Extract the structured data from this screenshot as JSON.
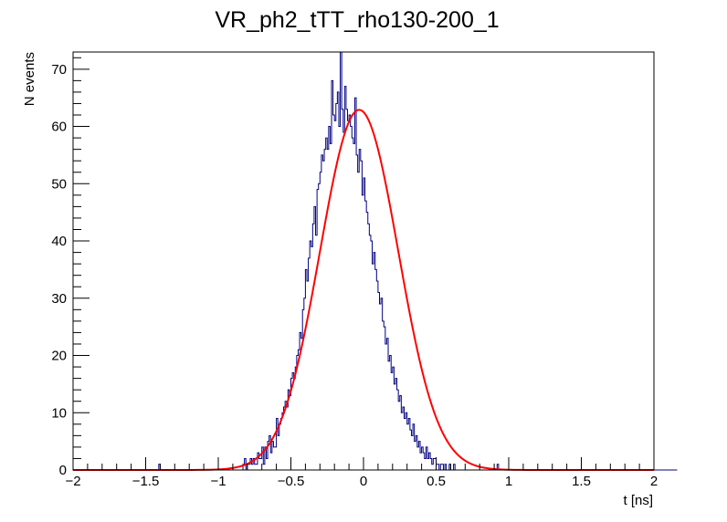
{
  "chart_data": {
    "type": "bar",
    "title": "VR_ph2_tTT_rho130-200_1",
    "xlabel": "t [ns]",
    "ylabel": "N events",
    "xlim": [
      -2,
      2
    ],
    "ylim": [
      0,
      73
    ],
    "x_ticks": [
      -2,
      -1.5,
      -1,
      -0.5,
      0,
      0.5,
      1,
      1.5,
      2
    ],
    "x_tick_labels": [
      "−2",
      "−1.5",
      "−1",
      "−0.5",
      "0",
      "0.5",
      "1",
      "1.5",
      "2"
    ],
    "y_ticks": [
      0,
      10,
      20,
      30,
      40,
      50,
      60,
      70
    ],
    "y_tick_labels": [
      "0",
      "10",
      "20",
      "30",
      "40",
      "50",
      "60",
      "70"
    ],
    "grid": false,
    "legend": "none",
    "series": [
      {
        "kind": "histogram",
        "color": "#000080",
        "bin_edges_start": -2,
        "bin_width": 0.01,
        "counts": [
          0,
          0,
          0,
          0,
          0,
          0,
          0,
          0,
          0,
          0,
          0,
          0,
          0,
          0,
          0,
          0,
          0,
          0,
          0,
          0,
          0,
          0,
          0,
          0,
          0,
          0,
          0,
          0,
          0,
          0,
          0,
          0,
          0,
          0,
          0,
          0,
          0,
          0,
          0,
          0,
          0,
          0,
          0,
          0,
          0,
          0,
          0,
          0,
          0,
          0,
          0,
          0,
          0,
          0,
          0,
          0,
          0,
          0,
          0,
          1,
          0,
          0,
          0,
          0,
          0,
          0,
          0,
          0,
          0,
          0,
          0,
          0,
          0,
          0,
          0,
          0,
          0,
          0,
          0,
          0,
          0,
          0,
          0,
          0,
          0,
          0,
          0,
          0,
          0,
          0,
          0,
          0,
          0,
          0,
          0,
          0,
          0,
          0,
          0,
          0,
          0,
          0,
          0,
          0,
          0,
          0,
          0,
          0,
          0,
          0,
          0,
          0,
          0,
          0,
          0,
          0,
          0,
          1,
          2,
          0,
          1,
          1,
          2,
          1,
          2,
          1,
          1,
          3,
          2,
          2,
          4,
          1,
          4,
          2,
          5,
          6,
          3,
          5,
          4,
          4,
          9,
          6,
          8,
          9,
          10,
          11,
          12,
          11,
          14,
          13,
          16,
          17,
          16,
          18,
          20,
          21,
          24,
          23,
          28,
          30,
          35,
          33,
          37,
          40,
          39,
          43,
          46,
          41,
          49,
          50,
          52,
          55,
          54,
          56,
          58,
          56,
          60,
          57,
          68,
          62,
          61,
          64,
          66,
          60,
          73,
          63,
          59,
          67,
          63,
          61,
          62,
          60,
          58,
          57,
          65,
          55,
          52,
          56,
          54,
          48,
          51,
          47,
          45,
          43,
          41,
          40,
          36,
          38,
          35,
          33,
          31,
          29,
          30,
          26,
          25,
          22,
          23,
          19,
          20,
          17,
          18,
          15,
          16,
          14,
          12,
          13,
          10,
          11,
          9,
          10,
          8,
          9,
          7,
          6,
          8,
          5,
          6,
          4,
          5,
          3,
          4,
          3,
          2,
          4,
          2,
          3,
          2,
          1,
          2,
          2,
          1,
          1,
          0,
          1,
          1,
          0,
          1,
          0,
          0,
          1,
          0,
          0,
          1,
          0,
          0,
          0,
          0,
          0,
          0,
          0,
          0,
          0,
          0,
          0,
          0,
          0,
          0,
          0,
          0,
          0,
          0,
          0,
          0,
          0,
          0,
          0,
          0,
          0,
          0,
          0,
          0,
          0,
          1,
          0,
          0,
          0,
          0,
          0,
          0,
          0,
          0,
          0,
          0,
          0,
          0,
          0,
          0,
          0,
          0,
          0,
          0,
          0,
          0,
          0,
          0,
          0,
          0,
          0,
          0,
          0,
          0,
          0,
          0,
          0,
          0,
          0,
          0,
          0,
          0,
          0,
          0,
          0,
          0,
          0,
          0,
          0,
          0,
          0,
          0,
          0,
          0,
          0,
          0,
          0,
          0,
          0,
          0,
          0,
          0,
          0,
          0,
          0,
          0,
          0,
          0,
          0,
          0,
          0,
          0,
          0,
          0,
          0,
          0,
          0,
          0,
          0,
          0,
          0,
          0,
          0,
          0,
          0,
          0,
          0,
          0,
          0,
          0,
          0,
          0,
          0,
          0,
          0,
          0,
          0,
          0,
          0,
          0,
          0,
          0,
          0,
          0,
          0,
          0,
          0,
          0,
          0,
          0,
          0,
          0,
          0,
          0,
          0,
          0,
          0,
          0,
          0,
          0,
          0,
          0,
          0,
          0,
          0,
          0,
          0,
          0,
          0
        ]
      },
      {
        "kind": "fit",
        "function": "gaussian",
        "color": "#ff0000",
        "constant": 62.9,
        "mean": -0.03,
        "sigma": 0.27
      }
    ]
  }
}
